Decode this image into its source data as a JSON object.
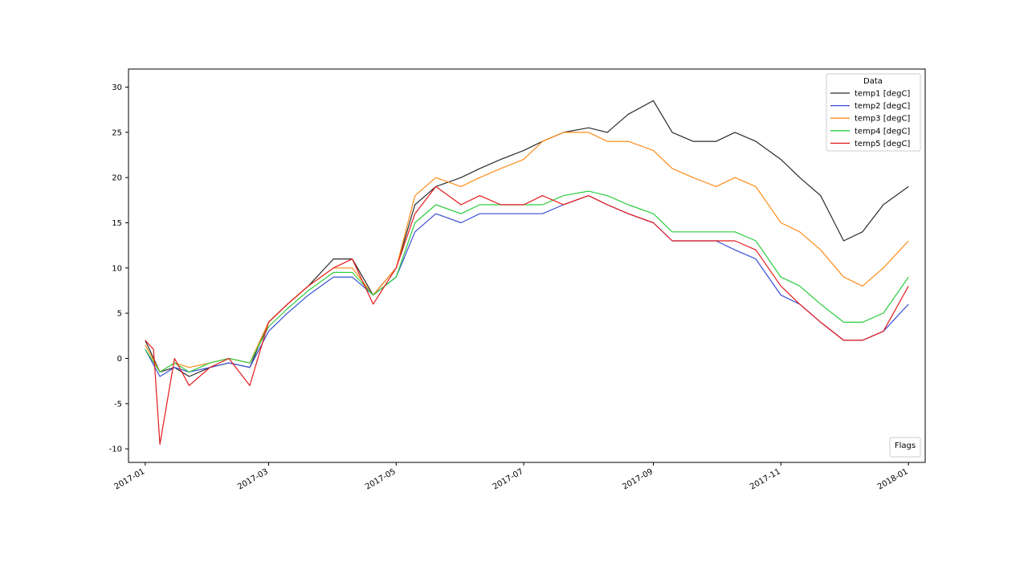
{
  "chart_data": {
    "type": "line",
    "title": "",
    "xlabel": "",
    "ylabel": "",
    "xlim": [
      "2016-12-24",
      "2018-01-09"
    ],
    "ylim": [
      -11.5,
      32
    ],
    "x_ticks": [
      "2017-01",
      "2017-03",
      "2017-05",
      "2017-07",
      "2017-09",
      "2017-11",
      "2018-01"
    ],
    "y_ticks": [
      -10,
      -5,
      0,
      5,
      10,
      15,
      20,
      25,
      30
    ],
    "legend": {
      "title": "Data",
      "placement": "upper right",
      "entries": [
        "temp1 [degC]",
        "temp2 [degC]",
        "temp3 [degC]",
        "temp4 [degC]",
        "temp5 [degC]"
      ]
    },
    "second_legend": {
      "title": "Flags",
      "placement": "lower right",
      "entries": []
    },
    "series": [
      {
        "name": "temp1 [degC]",
        "color": "#2b2b2b",
        "x": [
          "2017-01-01",
          "2017-01-08",
          "2017-01-15",
          "2017-01-22",
          "2017-02-01",
          "2017-02-10",
          "2017-02-20",
          "2017-03-01",
          "2017-03-10",
          "2017-03-20",
          "2017-04-01",
          "2017-04-10",
          "2017-04-20",
          "2017-05-01",
          "2017-05-10",
          "2017-05-20",
          "2017-06-01",
          "2017-06-10",
          "2017-06-20",
          "2017-07-01",
          "2017-07-10",
          "2017-07-20",
          "2017-08-01",
          "2017-08-10",
          "2017-08-20",
          "2017-09-01",
          "2017-09-10",
          "2017-09-20",
          "2017-10-01",
          "2017-10-10",
          "2017-10-20",
          "2017-11-01",
          "2017-11-10",
          "2017-11-20",
          "2017-12-01",
          "2017-12-10",
          "2017-12-20",
          "2018-01-01"
        ],
        "values": [
          2.0,
          -1.5,
          -1.0,
          -2.0,
          -1.0,
          -0.5,
          -1.0,
          4.0,
          6.0,
          8.0,
          11.0,
          11.0,
          7.0,
          10.0,
          17.0,
          19.0,
          20.0,
          21.0,
          22.0,
          23.0,
          24.0,
          25.0,
          25.5,
          25.0,
          27.0,
          28.5,
          25.0,
          24.0,
          24.0,
          25.0,
          24.0,
          22.0,
          20.0,
          18.0,
          13.0,
          14.0,
          17.0,
          19.0
        ]
      },
      {
        "name": "temp2 [degC]",
        "color": "#3b4fd6",
        "x": [
          "2017-01-01",
          "2017-01-08",
          "2017-01-15",
          "2017-01-22",
          "2017-02-01",
          "2017-02-10",
          "2017-02-20",
          "2017-03-01",
          "2017-03-10",
          "2017-03-20",
          "2017-04-01",
          "2017-04-10",
          "2017-04-20",
          "2017-05-01",
          "2017-05-10",
          "2017-05-20",
          "2017-06-01",
          "2017-06-10",
          "2017-06-20",
          "2017-07-01",
          "2017-07-10",
          "2017-07-20",
          "2017-08-01",
          "2017-08-10",
          "2017-08-20",
          "2017-09-01",
          "2017-09-10",
          "2017-09-20",
          "2017-10-01",
          "2017-10-10",
          "2017-10-20",
          "2017-11-01",
          "2017-11-10",
          "2017-11-20",
          "2017-12-01",
          "2017-12-10",
          "2017-12-20",
          "2018-01-01"
        ],
        "values": [
          1.0,
          -2.0,
          -1.0,
          -1.5,
          -1.0,
          -0.5,
          -1.0,
          3.0,
          5.0,
          7.0,
          9.0,
          9.0,
          7.0,
          9.0,
          14.0,
          16.0,
          15.0,
          16.0,
          16.0,
          16.0,
          16.0,
          17.0,
          18.0,
          17.0,
          16.0,
          15.0,
          13.0,
          13.0,
          13.0,
          12.0,
          11.0,
          7.0,
          6.0,
          4.0,
          2.0,
          2.0,
          3.0,
          6.0
        ]
      },
      {
        "name": "temp3 [degC]",
        "color": "#ff8c1a",
        "x": [
          "2017-01-01",
          "2017-01-08",
          "2017-01-15",
          "2017-01-22",
          "2017-02-01",
          "2017-02-10",
          "2017-02-20",
          "2017-03-01",
          "2017-03-10",
          "2017-03-20",
          "2017-04-01",
          "2017-04-10",
          "2017-04-20",
          "2017-05-01",
          "2017-05-10",
          "2017-05-20",
          "2017-06-01",
          "2017-06-10",
          "2017-06-20",
          "2017-07-01",
          "2017-07-10",
          "2017-07-20",
          "2017-08-01",
          "2017-08-10",
          "2017-08-20",
          "2017-09-01",
          "2017-09-10",
          "2017-09-20",
          "2017-10-01",
          "2017-10-10",
          "2017-10-20",
          "2017-11-01",
          "2017-11-10",
          "2017-11-20",
          "2017-12-01",
          "2017-12-10",
          "2017-12-20",
          "2018-01-01"
        ],
        "values": [
          1.5,
          -1.5,
          -0.5,
          -1.0,
          -0.5,
          0.0,
          -0.5,
          4.0,
          6.0,
          8.0,
          10.0,
          10.0,
          7.0,
          10.0,
          18.0,
          20.0,
          19.0,
          20.0,
          21.0,
          22.0,
          24.0,
          25.0,
          25.0,
          24.0,
          24.0,
          23.0,
          21.0,
          20.0,
          19.0,
          20.0,
          19.0,
          15.0,
          14.0,
          12.0,
          9.0,
          8.0,
          10.0,
          13.0
        ]
      },
      {
        "name": "temp4 [degC]",
        "color": "#2ecc40",
        "x": [
          "2017-01-01",
          "2017-01-08",
          "2017-01-15",
          "2017-01-22",
          "2017-02-01",
          "2017-02-10",
          "2017-02-20",
          "2017-03-01",
          "2017-03-10",
          "2017-03-20",
          "2017-04-01",
          "2017-04-10",
          "2017-04-20",
          "2017-05-01",
          "2017-05-10",
          "2017-05-20",
          "2017-06-01",
          "2017-06-10",
          "2017-06-20",
          "2017-07-01",
          "2017-07-10",
          "2017-07-20",
          "2017-08-01",
          "2017-08-10",
          "2017-08-20",
          "2017-09-01",
          "2017-09-10",
          "2017-09-20",
          "2017-10-01",
          "2017-10-10",
          "2017-10-20",
          "2017-11-01",
          "2017-11-10",
          "2017-11-20",
          "2017-12-01",
          "2017-12-10",
          "2017-12-20",
          "2018-01-01"
        ],
        "values": [
          1.0,
          -1.5,
          -0.5,
          -1.5,
          -0.5,
          0.0,
          -0.5,
          3.5,
          5.5,
          7.5,
          9.5,
          9.5,
          7.0,
          9.0,
          15.0,
          17.0,
          16.0,
          17.0,
          17.0,
          17.0,
          17.0,
          18.0,
          18.5,
          18.0,
          17.0,
          16.0,
          14.0,
          14.0,
          14.0,
          14.0,
          13.0,
          9.0,
          8.0,
          6.0,
          4.0,
          4.0,
          5.0,
          9.0
        ]
      },
      {
        "name": "temp5 [degC]",
        "color": "#e31a1c",
        "x": [
          "2017-01-01",
          "2017-01-05",
          "2017-01-08",
          "2017-01-15",
          "2017-01-22",
          "2017-02-01",
          "2017-02-10",
          "2017-02-20",
          "2017-03-01",
          "2017-03-10",
          "2017-03-20",
          "2017-04-01",
          "2017-04-10",
          "2017-04-20",
          "2017-05-01",
          "2017-05-10",
          "2017-05-20",
          "2017-06-01",
          "2017-06-10",
          "2017-06-20",
          "2017-07-01",
          "2017-07-10",
          "2017-07-20",
          "2017-08-01",
          "2017-08-10",
          "2017-08-20",
          "2017-09-01",
          "2017-09-10",
          "2017-09-20",
          "2017-10-01",
          "2017-10-10",
          "2017-10-20",
          "2017-11-01",
          "2017-11-10",
          "2017-11-20",
          "2017-12-01",
          "2017-12-10",
          "2017-12-20",
          "2018-01-01"
        ],
        "values": [
          2.0,
          1.0,
          -9.5,
          0.0,
          -3.0,
          -1.0,
          0.0,
          -3.0,
          4.0,
          6.0,
          8.0,
          10.0,
          11.0,
          6.0,
          10.0,
          16.0,
          19.0,
          17.0,
          18.0,
          17.0,
          17.0,
          18.0,
          17.0,
          18.0,
          17.0,
          16.0,
          15.0,
          13.0,
          13.0,
          13.0,
          13.0,
          12.0,
          8.0,
          6.0,
          4.0,
          2.0,
          2.0,
          3.0,
          8.0
        ]
      }
    ]
  }
}
